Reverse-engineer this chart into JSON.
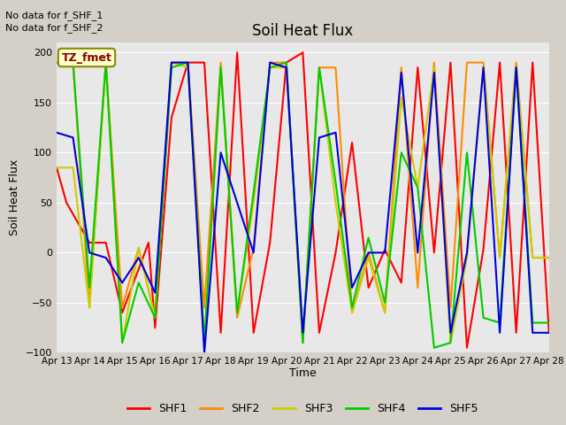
{
  "title": "Soil Heat Flux",
  "ylabel": "Soil Heat Flux",
  "xlabel": "Time",
  "text_no_data": [
    "No data for f_SHF_1",
    "No data for f_SHF_2"
  ],
  "legend_label": "TZ_fmet",
  "legend_entries": [
    "SHF1",
    "SHF2",
    "SHF3",
    "SHF4",
    "SHF5"
  ],
  "legend_colors": [
    "#ff0000",
    "#ff8c00",
    "#cccc00",
    "#00cc00",
    "#0000dd"
  ],
  "ylim": [
    -100,
    210
  ],
  "yticks": [
    -100,
    -50,
    0,
    50,
    100,
    150,
    200
  ],
  "xtick_labels": [
    "Apr 13",
    "Apr 14",
    "Apr 15",
    "Apr 16",
    "Apr 17",
    "Apr 18",
    "Apr 19",
    "Apr 20",
    "Apr 21",
    "Apr 22",
    "Apr 23",
    "Apr 24",
    "Apr 25",
    "Apr 26",
    "Apr 27",
    "Apr 28"
  ],
  "fig_bg": "#d4d0c8",
  "ax_bg": "#e8e8e8",
  "shf1_x": [
    0,
    1,
    2,
    3,
    4,
    5,
    6,
    7,
    8,
    9,
    10,
    11,
    12,
    13,
    14,
    15
  ],
  "shf1_y": [
    85,
    50,
    10,
    -75,
    190,
    200,
    10,
    190,
    0,
    -35,
    -30,
    0,
    -95,
    190,
    190,
    -80
  ],
  "shf2_x": [
    0,
    1,
    2,
    3,
    4,
    5,
    6,
    7,
    8,
    9,
    10,
    11,
    12,
    13,
    14,
    15
  ],
  "shf2_y": [
    190,
    -55,
    190,
    -65,
    190,
    -65,
    190,
    190,
    185,
    -60,
    -60,
    185,
    -55,
    190,
    190,
    -5
  ],
  "shf3_x": [
    0,
    1,
    2,
    3,
    4,
    5,
    6,
    7,
    8,
    9,
    10,
    11,
    12,
    13,
    14,
    15
  ],
  "shf3_y": [
    85,
    -55,
    190,
    -90,
    185,
    -90,
    185,
    185,
    185,
    -60,
    -60,
    155,
    -90,
    185,
    185,
    -5
  ],
  "shf4_x": [
    0,
    1,
    2,
    3,
    4,
    5,
    6,
    7,
    8,
    9,
    10,
    11,
    12,
    13,
    14,
    15
  ],
  "shf4_y": [
    190,
    -35,
    190,
    -65,
    190,
    -90,
    190,
    190,
    185,
    70,
    -55,
    100,
    -90,
    -65,
    185,
    -70
  ],
  "shf5_x": [
    0,
    1,
    2,
    3,
    4,
    5,
    6,
    7,
    8,
    9,
    10,
    11,
    12,
    13,
    14,
    15
  ],
  "shf5_y": [
    120,
    0,
    -5,
    -40,
    190,
    -100,
    0,
    185,
    115,
    -35,
    0,
    180,
    -80,
    185,
    185,
    -80
  ],
  "shf1_x2": [
    0,
    0.3,
    1,
    1.5,
    2,
    2.8,
    3,
    3.5,
    4,
    4.5,
    5,
    5.5,
    6,
    6.5,
    7,
    7.5,
    8,
    8.5,
    9,
    9.5,
    10,
    10.5,
    11,
    11.5,
    12,
    12.5,
    13,
    13.5,
    14,
    14.5,
    15
  ],
  "shf1_y2": [
    85,
    50,
    10,
    10,
    -60,
    10,
    -75,
    135,
    190,
    190,
    -80,
    200,
    -80,
    10,
    190,
    200,
    -80,
    0,
    110,
    -35,
    3,
    -30,
    185,
    0,
    190,
    -95,
    3,
    190,
    -80,
    190,
    -80
  ],
  "shf2_x2": [
    0,
    0.5,
    1,
    1.5,
    2,
    2.5,
    3,
    3.5,
    4,
    4.5,
    5,
    5.5,
    6,
    6.5,
    7,
    7.5,
    8,
    8.5,
    9,
    9.5,
    10,
    10.5,
    11,
    11.5,
    12,
    12.5,
    13,
    13.5,
    14,
    14.5,
    15
  ],
  "shf2_y2": [
    190,
    190,
    -55,
    190,
    -55,
    5,
    -65,
    190,
    190,
    -55,
    190,
    -65,
    5,
    190,
    190,
    -90,
    185,
    185,
    -60,
    0,
    -60,
    185,
    -35,
    190,
    -55,
    190,
    190,
    -5,
    190,
    -5,
    -5
  ],
  "shf3_x2": [
    0,
    0.5,
    1,
    1.5,
    2,
    2.5,
    3,
    3.5,
    4,
    4.5,
    5,
    5.5,
    6,
    6.5,
    7,
    7.5,
    8,
    8.5,
    9,
    9.5,
    10,
    10.5,
    11,
    11.5,
    12,
    12.5,
    13,
    13.5,
    14,
    14.5,
    15
  ],
  "shf3_y2": [
    85,
    85,
    -55,
    190,
    -90,
    5,
    -65,
    190,
    185,
    -90,
    185,
    -60,
    50,
    185,
    185,
    -90,
    185,
    50,
    -60,
    -5,
    -60,
    155,
    65,
    185,
    -90,
    -5,
    185,
    -5,
    185,
    -5,
    -5
  ],
  "shf4_x2": [
    0,
    0.5,
    1,
    1.5,
    2,
    2.5,
    3,
    3.5,
    4,
    4.5,
    5,
    5.5,
    6,
    6.5,
    7,
    7.5,
    8,
    8.5,
    9,
    9.5,
    10,
    10.5,
    11,
    11.5,
    12,
    12.5,
    13,
    13.5,
    14,
    14.5,
    15
  ],
  "shf4_y2": [
    190,
    190,
    -35,
    190,
    -90,
    -30,
    -65,
    185,
    190,
    -90,
    185,
    -60,
    60,
    185,
    190,
    -90,
    185,
    70,
    -55,
    15,
    -50,
    100,
    65,
    -95,
    -90,
    100,
    -65,
    -70,
    185,
    -70,
    -70
  ],
  "shf5_x2": [
    0,
    0.5,
    1,
    1.5,
    2,
    2.5,
    3,
    3.5,
    4,
    4.5,
    5,
    5.5,
    6,
    6.5,
    7,
    7.5,
    8,
    8.5,
    9,
    9.5,
    10,
    10.5,
    11,
    11.5,
    12,
    12.5,
    13,
    13.5,
    14,
    14.5,
    15
  ],
  "shf5_y2": [
    120,
    115,
    0,
    -5,
    -30,
    -5,
    -40,
    190,
    190,
    -100,
    100,
    50,
    0,
    190,
    185,
    -80,
    115,
    120,
    -35,
    0,
    0,
    180,
    0,
    180,
    -80,
    0,
    185,
    -80,
    185,
    -80,
    -80
  ]
}
